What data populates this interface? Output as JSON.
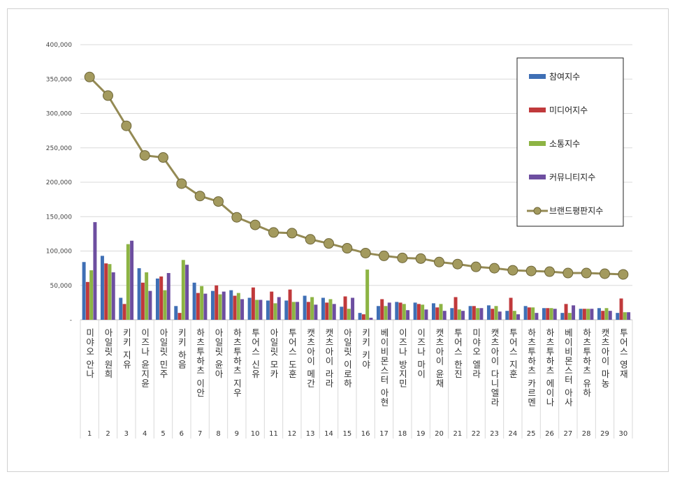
{
  "chart_data": {
    "type": "bar",
    "title": "",
    "xlabel": "",
    "ylabel": "",
    "ylim": [
      0,
      400000
    ],
    "yticks": [
      "-",
      "50,000",
      "100,000",
      "150,000",
      "200,000",
      "250,000",
      "300,000",
      "350,000",
      "400,000"
    ],
    "grid": true,
    "legend_position": "top-right",
    "ranks": [
      "1",
      "2",
      "3",
      "4",
      "5",
      "6",
      "7",
      "8",
      "9",
      "10",
      "11",
      "12",
      "13",
      "14",
      "15",
      "16",
      "17",
      "18",
      "19",
      "20",
      "21",
      "22",
      "23",
      "24",
      "25",
      "26",
      "27",
      "28",
      "29",
      "30"
    ],
    "categories": [
      "미야오 안나",
      "아일릿 원희",
      "키키 지유",
      "이즈나 윤지윤",
      "아일릿 민주",
      "키키 하음",
      "하츠투하츠 이안",
      "아일릿 윤아",
      "하츠투하츠 지우",
      "투어스 신유",
      "아일릿 모카",
      "투어스 도훈",
      "캣츠아이 메간",
      "캣츠아이 라라",
      "아일릿 이로하",
      "키키 키야",
      "베이비몬스터 아현",
      "이즈나 방지민",
      "이즈나 마이",
      "캣츠아이 윤채",
      "투어스 한진",
      "미야오 엘라",
      "캣츠아이 다니엘라",
      "투어스 지훈",
      "하츠투하츠 카르멘",
      "하츠투하츠 에이나",
      "베이비몬스터 아사",
      "하츠투하츠 유하",
      "캣츠아이 마농",
      "투어스 영재"
    ],
    "series": [
      {
        "name": "참여지수",
        "type": "bar",
        "color": "#3f6fb5",
        "values": [
          84000,
          93000,
          32000,
          75000,
          60000,
          20000,
          54000,
          42000,
          43000,
          32000,
          28000,
          28000,
          35000,
          32000,
          19000,
          10000,
          20000,
          26000,
          25000,
          24000,
          17000,
          20000,
          21000,
          13000,
          20000,
          17000,
          10000,
          16000,
          17000,
          10000
        ]
      },
      {
        "name": "미디어지수",
        "type": "bar",
        "color": "#c0393b",
        "values": [
          55000,
          82000,
          23000,
          54000,
          63000,
          10000,
          39000,
          50000,
          35000,
          47000,
          41000,
          44000,
          26000,
          25000,
          34000,
          8000,
          30000,
          25000,
          23000,
          18000,
          33000,
          20000,
          16000,
          32000,
          18000,
          17000,
          23000,
          16000,
          13000,
          31000
        ]
      },
      {
        "name": "소통지수",
        "type": "bar",
        "color": "#8db444",
        "values": [
          72000,
          81000,
          110000,
          69000,
          43000,
          87000,
          49000,
          37000,
          39000,
          29000,
          24000,
          26000,
          33000,
          30000,
          16000,
          73000,
          20000,
          23000,
          22000,
          23000,
          15000,
          17000,
          20000,
          13000,
          18000,
          17000,
          10000,
          16000,
          17000,
          11000
        ]
      },
      {
        "name": "커뮤니티지수",
        "type": "bar",
        "color": "#6d4ea0",
        "values": [
          142000,
          69000,
          115000,
          42000,
          68000,
          80000,
          38000,
          41000,
          30000,
          29000,
          33000,
          26000,
          22000,
          23000,
          32000,
          3000,
          25000,
          14000,
          15000,
          13000,
          13000,
          17000,
          12000,
          8000,
          10000,
          16000,
          21000,
          16000,
          13000,
          11000
        ]
      },
      {
        "name": "브랜드평판지수",
        "type": "line",
        "color": "#948a54",
        "values": [
          353000,
          326000,
          282000,
          239000,
          236000,
          198000,
          180000,
          172000,
          149000,
          138000,
          127000,
          126000,
          117000,
          111000,
          104000,
          97000,
          93000,
          90000,
          89000,
          84000,
          81000,
          77000,
          75000,
          72000,
          71000,
          70000,
          68000,
          68000,
          67000,
          66000
        ]
      }
    ]
  }
}
